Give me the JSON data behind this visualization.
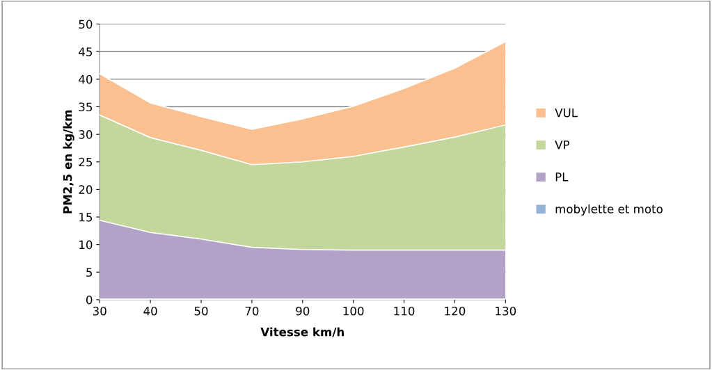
{
  "chart_data": {
    "type": "area",
    "stacked": true,
    "xlabel": "Vitesse km/h",
    "ylabel": "PM2,5 en kg/km",
    "categories": [
      "30",
      "40",
      "50",
      "70",
      "90",
      "100",
      "110",
      "120",
      "130"
    ],
    "series": [
      {
        "name": "mobylette et moto",
        "color": "#95b3d7",
        "values": [
          0.1,
          0.1,
          0.1,
          0.1,
          0.1,
          0.1,
          0.1,
          0.1,
          0.1
        ]
      },
      {
        "name": "PL",
        "color": "#b3a2c7",
        "values": [
          14.3,
          12.1,
          10.9,
          9.4,
          9.0,
          8.9,
          8.9,
          8.9,
          8.9
        ]
      },
      {
        "name": "VP",
        "color": "#c3d69b",
        "values": [
          19.1,
          17.2,
          16.1,
          15.0,
          15.9,
          17.0,
          18.7,
          20.5,
          22.7
        ]
      },
      {
        "name": "VUL",
        "color": "#fac090",
        "values": [
          7.5,
          6.3,
          6.1,
          6.4,
          7.8,
          9.1,
          10.6,
          12.5,
          15.1
        ]
      }
    ],
    "ylim": [
      0,
      50
    ],
    "yticks": [
      0,
      5,
      10,
      15,
      20,
      25,
      30,
      35,
      40,
      45,
      50
    ],
    "grid": "y",
    "legend": "right"
  }
}
